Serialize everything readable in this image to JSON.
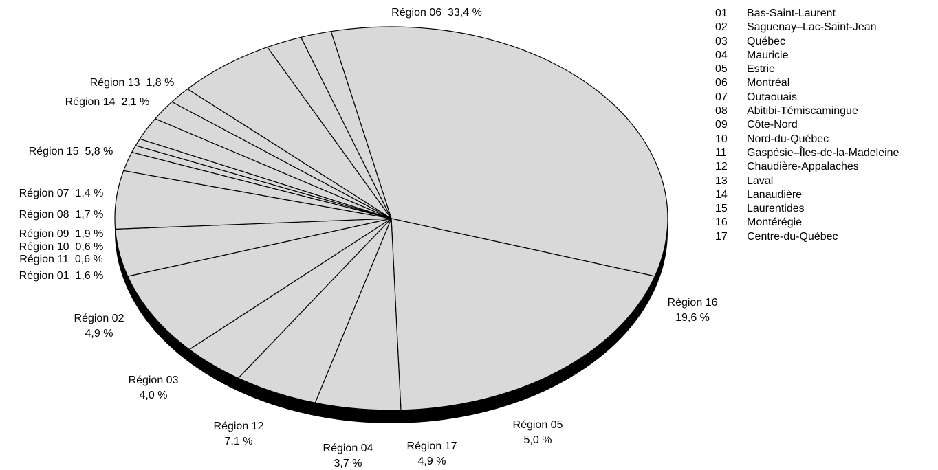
{
  "chart_data": {
    "type": "pie",
    "title": "",
    "style": "3d-tilted",
    "slice_color": "#d9d9d9",
    "edge_color": "#000000",
    "side_color": "#000000",
    "series": [
      {
        "code": "06",
        "region": "Région 06",
        "value": 33.4,
        "label": "Région 06  33,4 %"
      },
      {
        "code": "16",
        "region": "Région 16",
        "value": 19.6,
        "label": "Région 16\n19,6 %"
      },
      {
        "code": "05",
        "region": "Région 05",
        "value": 5.0,
        "label": "Région 05\n5,0 %"
      },
      {
        "code": "17",
        "region": "Région 17",
        "value": 4.9,
        "label": "Région 17\n4,9 %"
      },
      {
        "code": "04",
        "region": "Région 04",
        "value": 3.7,
        "label": "Région 04\n3,7 %"
      },
      {
        "code": "12",
        "region": "Région 12",
        "value": 7.1,
        "label": "Région 12\n7,1 %"
      },
      {
        "code": "03",
        "region": "Région 03",
        "value": 4.0,
        "label": "Région 03\n4,0 %"
      },
      {
        "code": "02",
        "region": "Région 02",
        "value": 4.9,
        "label": "Région 02\n4,9 %"
      },
      {
        "code": "01",
        "region": "Région 01",
        "value": 1.6,
        "label": "Région 01  1,6 %"
      },
      {
        "code": "11",
        "region": "Région 11",
        "value": 0.6,
        "label": "Région 11  0,6 %"
      },
      {
        "code": "10",
        "region": "Région 10",
        "value": 0.6,
        "label": "Région 10  0,6 %"
      },
      {
        "code": "09",
        "region": "Région 09",
        "value": 1.9,
        "label": "Région 09  1,9 %"
      },
      {
        "code": "08",
        "region": "Région 08",
        "value": 1.7,
        "label": "Région 08  1,7 %"
      },
      {
        "code": "07",
        "region": "Région 07",
        "value": 1.4,
        "label": "Région 07  1,4 %"
      },
      {
        "code": "15",
        "region": "Région 15",
        "value": 5.8,
        "label": "Région 15  5,8 %"
      },
      {
        "code": "14",
        "region": "Région 14",
        "value": 2.1,
        "label": "Région 14  2,1 %"
      },
      {
        "code": "13",
        "region": "Région 13",
        "value": 1.8,
        "label": "Région 13  1,8 %"
      }
    ],
    "legend": [
      {
        "code": "01",
        "name": "Bas-Saint-Laurent"
      },
      {
        "code": "02",
        "name": "Saguenay–Lac-Saint-Jean"
      },
      {
        "code": "03",
        "name": "Québec"
      },
      {
        "code": "04",
        "name": "Mauricie"
      },
      {
        "code": "05",
        "name": "Estrie"
      },
      {
        "code": "06",
        "name": "Montréal"
      },
      {
        "code": "07",
        "name": "Outaouais"
      },
      {
        "code": "08",
        "name": "Abitibi-Témiscamingue"
      },
      {
        "code": "09",
        "name": "Côte-Nord"
      },
      {
        "code": "10",
        "name": "Nord-du-Québec"
      },
      {
        "code": "11",
        "name": "Gaspésie–Îles-de-la-Madeleine"
      },
      {
        "code": "12",
        "name": "Chaudière-Appalaches"
      },
      {
        "code": "13",
        "name": "Laval"
      },
      {
        "code": "14",
        "name": "Lanaudière"
      },
      {
        "code": "15",
        "name": "Laurentides"
      },
      {
        "code": "16",
        "name": "Montérégie"
      },
      {
        "code": "17",
        "name": "Centre-du-Québec"
      }
    ]
  }
}
